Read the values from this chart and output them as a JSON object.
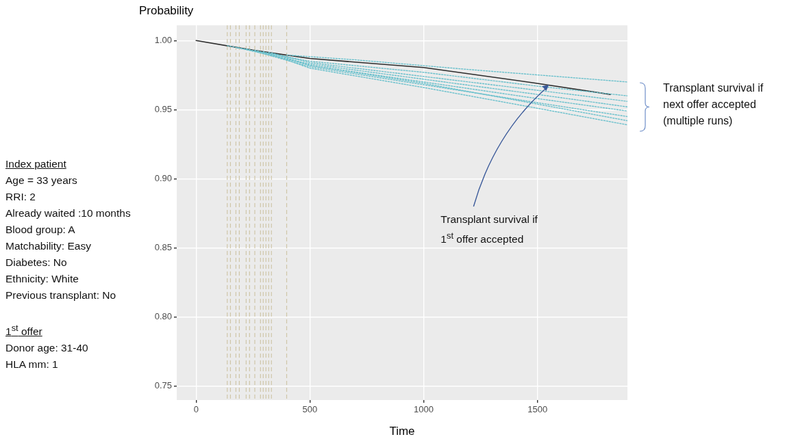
{
  "chart_data": {
    "type": "line",
    "xlabel": "Time",
    "ylabel": "Probability",
    "xlim": [
      -85,
      1895
    ],
    "ylim": [
      0.74,
      1.011
    ],
    "xticks": [
      0,
      500,
      1000,
      1500
    ],
    "yticks": [
      0.75,
      {
        "value": 0.8,
        "label": "0.80"
      },
      0.85,
      {
        "value": 0.9,
        "label": "0.90"
      },
      0.95,
      {
        "value": 1,
        "label": "1.00"
      }
    ],
    "grid": true,
    "legend": false,
    "marker": "none",
    "series": [
      {
        "color": "#69c0cc",
        "line_style": "dotted",
        "x": [
          137,
          500,
          1000,
          1500,
          1895
        ],
        "values": [
          0.9962,
          0.985,
          0.977,
          0.967,
          0.96
        ]
      },
      {
        "color": "#69c0cc",
        "line_style": "dotted",
        "x": [
          175,
          500,
          1000,
          1500,
          1895
        ],
        "values": [
          0.995,
          0.983,
          0.972,
          0.961,
          0.952
        ]
      },
      {
        "color": "#69c0cc",
        "line_style": "dotted",
        "x": [
          220,
          500,
          1000,
          1500,
          1895
        ],
        "values": [
          0.994,
          0.981,
          0.968,
          0.955,
          0.945
        ]
      },
      {
        "color": "#69c0cc",
        "line_style": "dotted",
        "x": [
          258,
          500,
          1000,
          1500,
          1895
        ],
        "values": [
          0.993,
          0.982,
          0.97,
          0.958,
          0.949
        ]
      },
      {
        "color": "#69c0cc",
        "line_style": "dotted",
        "x": [
          295,
          500,
          1000,
          1500,
          1895
        ],
        "values": [
          0.992,
          0.98,
          0.966,
          0.951,
          0.939
        ]
      },
      {
        "color": "#69c0cc",
        "line_style": "dotted",
        "x": [
          319,
          500,
          1000,
          1500,
          1895
        ],
        "values": [
          0.9915,
          0.984,
          0.974,
          0.964,
          0.956
        ]
      },
      {
        "color": "#69c0cc",
        "line_style": "dotted",
        "x": [
          331,
          500,
          1000,
          1500,
          1895
        ],
        "values": [
          0.991,
          0.982,
          0.969,
          0.954,
          0.942
        ]
      },
      {
        "color": "#69c0cc",
        "line_style": "dotted",
        "x": [
          398,
          700,
          1200,
          1895
        ],
        "values": [
          0.9895,
          0.986,
          0.979,
          0.97
        ]
      },
      {
        "color": "#2b2b2b",
        "line_style": "solid",
        "x": [
          0,
          250,
          500,
          1000,
          1500,
          1820
        ],
        "values": [
          1.0,
          0.993,
          0.987,
          0.9805,
          0.969,
          0.961
        ]
      }
    ],
    "ref_lines": [
      {
        "axis": "x",
        "value": 137,
        "color": "#cfc6a8",
        "line_style": "dashed"
      },
      {
        "axis": "x",
        "value": 151,
        "color": "#cfc6a8",
        "line_style": "dashed"
      },
      {
        "axis": "x",
        "value": 175,
        "color": "#cfc6a8",
        "line_style": "dashed"
      },
      {
        "axis": "x",
        "value": 190,
        "color": "#cfc6a8",
        "line_style": "dashed"
      },
      {
        "axis": "x",
        "value": 220,
        "color": "#cfc6a8",
        "line_style": "dashed"
      },
      {
        "axis": "x",
        "value": 235,
        "color": "#cfc6a8",
        "line_style": "dashed"
      },
      {
        "axis": "x",
        "value": 258,
        "color": "#cfc6a8",
        "line_style": "dashed"
      },
      {
        "axis": "x",
        "value": 283,
        "color": "#cfc6a8",
        "line_style": "dashed"
      },
      {
        "axis": "x",
        "value": 295,
        "color": "#cfc6a8",
        "line_style": "dashed"
      },
      {
        "axis": "x",
        "value": 307,
        "color": "#cfc6a8",
        "line_style": "dashed"
      },
      {
        "axis": "x",
        "value": 319,
        "color": "#cfc6a8",
        "line_style": "dashed"
      },
      {
        "axis": "x",
        "value": 331,
        "color": "#cfc6a8",
        "line_style": "dashed"
      },
      {
        "axis": "x",
        "value": 398,
        "color": "#cfc6a8",
        "line_style": "dashed"
      }
    ],
    "annotations": [
      "Index patient\nAge = 33 years\nRRI: 2\nAlready waited :10 months\nBlood group: A\nMatchability: Easy\nDiabetes: No\nEthnicity: White\nPrevious transplant: No",
      "1$^{st}$ offer\nDonor age: 31-40\nHLA mm: 1",
      {
        "text": "Transplant survival if\n1$^{st}$ offer accepted",
        "x": 1550,
        "y": 0.968
      },
      "Transplant survival if\nnext offer accepted\n(multiple runs)"
    ]
  }
}
